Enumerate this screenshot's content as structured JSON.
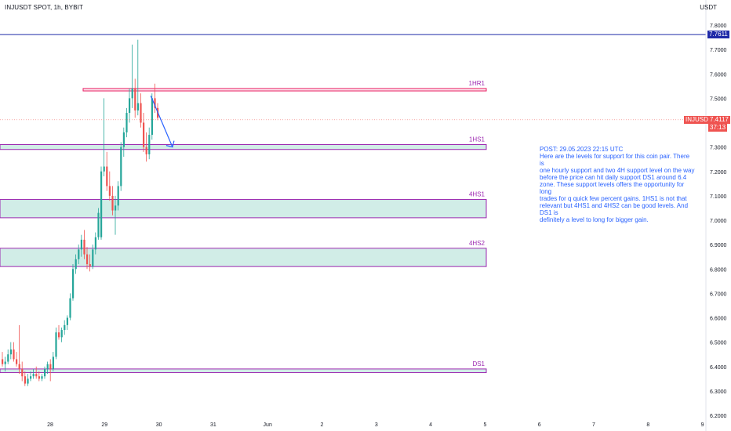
{
  "header": {
    "symbol_title": "INJUSDT SPOT, 1h, BYBIT",
    "currency": "USDT"
  },
  "note": {
    "lines": [
      "POST: 29.05.2023 22:15 UTC",
      "Here are the levels for support for this coin pair. There is",
      "one hourly support and two 4H support level on the way",
      "before the price can hit daily support DS1 around 6.4",
      "zone. These support levels offers the opportunity for long",
      "trades for q quick few percent gains. 1HS1 is not that",
      "relevant but 4HS1 and 4HS2 can be good levels. And DS1 is",
      "definitely a level to long for bigger gain."
    ]
  },
  "tags": {
    "blue_line_value": "7.7611",
    "symbol": "INJUSDT",
    "last_price": "7.4117",
    "countdown": "37:13"
  },
  "colors": {
    "up": "#26a69a",
    "down": "#ef5350",
    "zone_fill": "#d1ede7",
    "zone_border": "#9c27b0",
    "resistance_border": "#e91e63",
    "blue_line": "#1f2aa8",
    "price_line": "#ef5350",
    "arrow": "#2962ff",
    "label": "#9c27b0"
  },
  "chart_data": {
    "type": "candlestick",
    "y_ticks": [
      "6.2000",
      "6.3000",
      "6.4000",
      "6.5000",
      "6.6000",
      "6.7000",
      "6.8000",
      "6.9000",
      "7.0000",
      "7.1000",
      "7.2000",
      "7.3000",
      "7.4000",
      "7.5000",
      "7.6000",
      "7.7000",
      "7.8000"
    ],
    "ylim": [
      6.2,
      7.84
    ],
    "x_ticks": [
      "28",
      "29",
      "30",
      "31",
      "Jun",
      "2",
      "3",
      "4",
      "5",
      "6",
      "7",
      "8",
      "9"
    ],
    "horizontal_line": 7.7611,
    "last_price": 7.4117,
    "zones": [
      {
        "label": "1HR1",
        "top": 7.54,
        "bottom": 7.53
      },
      {
        "label": "1HS1",
        "top": 7.31,
        "bottom": 7.29
      },
      {
        "label": "4HS1",
        "top": 7.085,
        "bottom": 7.01
      },
      {
        "label": "4HS2",
        "top": 6.885,
        "bottom": 6.81
      },
      {
        "label": "DS1",
        "top": 6.39,
        "bottom": 6.375
      }
    ],
    "arrow": {
      "from": [
        29.85,
        7.51
      ],
      "to": [
        30.25,
        7.3
      ]
    },
    "candles": [
      [
        6.43,
        6.46,
        6.4,
        6.41
      ],
      [
        6.41,
        6.44,
        6.38,
        6.42
      ],
      [
        6.42,
        6.47,
        6.41,
        6.45
      ],
      [
        6.45,
        6.5,
        6.43,
        6.47
      ],
      [
        6.47,
        6.5,
        6.42,
        6.43
      ],
      [
        6.43,
        6.46,
        6.4,
        6.41
      ],
      [
        6.41,
        6.57,
        6.37,
        6.39
      ],
      [
        6.39,
        6.42,
        6.34,
        6.36
      ],
      [
        6.36,
        6.38,
        6.32,
        6.33
      ],
      [
        6.33,
        6.37,
        6.32,
        6.35
      ],
      [
        6.35,
        6.38,
        6.34,
        6.36
      ],
      [
        6.36,
        6.39,
        6.35,
        6.37
      ],
      [
        6.37,
        6.4,
        6.35,
        6.36
      ],
      [
        6.36,
        6.38,
        6.34,
        6.35
      ],
      [
        6.35,
        6.37,
        6.34,
        6.36
      ],
      [
        6.36,
        6.4,
        6.35,
        6.39
      ],
      [
        6.39,
        6.42,
        6.37,
        6.41
      ],
      [
        6.41,
        6.43,
        6.34,
        6.39
      ],
      [
        6.39,
        6.46,
        6.38,
        6.44
      ],
      [
        6.44,
        6.56,
        6.43,
        6.54
      ],
      [
        6.54,
        6.57,
        6.51,
        6.52
      ],
      [
        6.52,
        6.56,
        6.5,
        6.55
      ],
      [
        6.55,
        6.59,
        6.53,
        6.57
      ],
      [
        6.57,
        6.61,
        6.55,
        6.6
      ],
      [
        6.6,
        6.7,
        6.59,
        6.68
      ],
      [
        6.68,
        6.82,
        6.67,
        6.8
      ],
      [
        6.8,
        6.86,
        6.78,
        6.84
      ],
      [
        6.84,
        6.9,
        6.82,
        6.88
      ],
      [
        6.88,
        6.94,
        6.85,
        6.92
      ],
      [
        6.92,
        6.96,
        6.84,
        6.86
      ],
      [
        6.86,
        6.89,
        6.8,
        6.82
      ],
      [
        6.82,
        6.86,
        6.79,
        6.81
      ],
      [
        6.81,
        6.9,
        6.8,
        6.88
      ],
      [
        6.88,
        6.95,
        6.86,
        6.93
      ],
      [
        6.93,
        7.05,
        6.92,
        7.03
      ],
      [
        6.93,
        7.22,
        6.92,
        7.2
      ],
      [
        7.2,
        7.5,
        7.18,
        7.22
      ],
      [
        7.22,
        7.28,
        7.12,
        7.14
      ],
      [
        7.14,
        7.2,
        7.08,
        7.1
      ],
      [
        7.1,
        7.14,
        7.02,
        7.04
      ],
      [
        7.04,
        7.1,
        6.94,
        7.06
      ],
      [
        7.06,
        7.16,
        7.04,
        7.14
      ],
      [
        7.14,
        7.32,
        7.12,
        7.3
      ],
      [
        7.3,
        7.38,
        7.26,
        7.36
      ],
      [
        7.36,
        7.46,
        7.34,
        7.44
      ],
      [
        7.44,
        7.54,
        7.4,
        7.5
      ],
      [
        7.5,
        7.72,
        7.46,
        7.54
      ],
      [
        7.54,
        7.58,
        7.42,
        7.45
      ],
      [
        7.45,
        7.74,
        7.43,
        7.48
      ],
      [
        7.48,
        7.52,
        7.38,
        7.4
      ],
      [
        7.4,
        7.44,
        7.28,
        7.3
      ],
      [
        7.3,
        7.36,
        7.24,
        7.27
      ],
      [
        7.27,
        7.38,
        7.25,
        7.35
      ],
      [
        7.35,
        7.52,
        7.33,
        7.5
      ],
      [
        7.5,
        7.56,
        7.44,
        7.46
      ],
      [
        7.46,
        7.48,
        7.41,
        7.42
      ]
    ]
  }
}
